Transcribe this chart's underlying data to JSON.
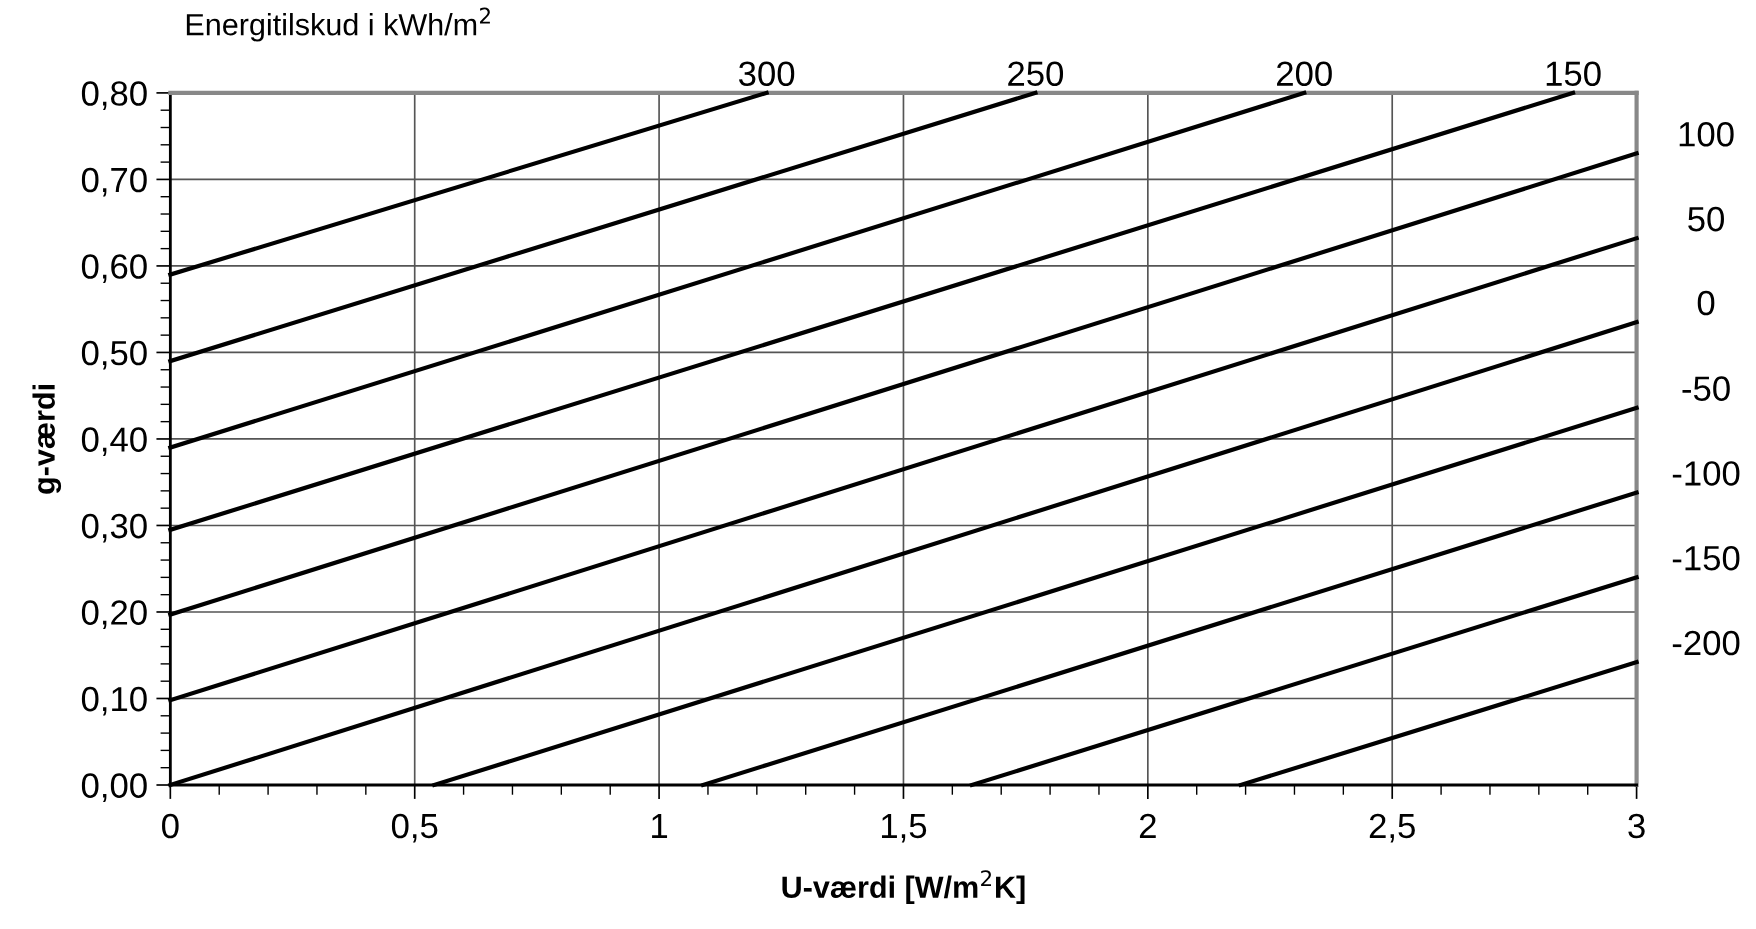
{
  "chart_data": {
    "type": "line",
    "title": "Energitilskud i kWh/m$^{2}$",
    "xlabel": "U-værdi [W/m$^{2}$K]",
    "ylabel": "g-værdi",
    "xlim": [
      0,
      3
    ],
    "ylim": [
      0,
      0.8
    ],
    "xticks": [
      {
        "value": 0,
        "label": "0"
      },
      {
        "value": 0.5,
        "label": "0,5"
      },
      {
        "value": 1,
        "label": "1"
      },
      {
        "value": 1.5,
        "label": "1,5"
      },
      {
        "value": 2,
        "label": "2"
      },
      {
        "value": 2.5,
        "label": "2,5"
      },
      {
        "value": 3,
        "label": "3"
      }
    ],
    "yticks": [
      {
        "value": 0,
        "label": "0,00"
      },
      {
        "value": 0.1,
        "label": "0,10"
      },
      {
        "value": 0.2,
        "label": "0,20"
      },
      {
        "value": 0.3,
        "label": "0,30"
      },
      {
        "value": 0.4,
        "label": "0,40"
      },
      {
        "value": 0.5,
        "label": "0,50"
      },
      {
        "value": 0.6,
        "label": "0,60"
      },
      {
        "value": 0.7,
        "label": "0,70"
      },
      {
        "value": 0.8,
        "label": "0,80"
      }
    ],
    "grid": true,
    "line_style": "solid",
    "series": [
      {
        "name": "300",
        "color": "#000000",
        "x": [
          0,
          1.22
        ],
        "values": [
          0.59,
          0.8
        ]
      },
      {
        "name": "250",
        "color": "#000000",
        "x": [
          0,
          1.77
        ],
        "values": [
          0.49,
          0.8
        ]
      },
      {
        "name": "200",
        "color": "#000000",
        "x": [
          0,
          2.32
        ],
        "values": [
          0.39,
          0.8
        ]
      },
      {
        "name": "150",
        "color": "#000000",
        "x": [
          0,
          2.87
        ],
        "values": [
          0.295,
          0.8
        ]
      },
      {
        "name": "100",
        "color": "#000000",
        "x": [
          0,
          3
        ],
        "values": [
          0.197,
          0.73
        ]
      },
      {
        "name": "50",
        "color": "#000000",
        "x": [
          0,
          3
        ],
        "values": [
          0.098,
          0.632
        ]
      },
      {
        "name": "0",
        "color": "#000000",
        "x": [
          0,
          3
        ],
        "values": [
          0,
          0.535
        ]
      },
      {
        "name": "-50",
        "color": "#000000",
        "x": [
          0.54,
          3
        ],
        "values": [
          0,
          0.436
        ]
      },
      {
        "name": "-100",
        "color": "#000000",
        "x": [
          1.09,
          3
        ],
        "values": [
          0,
          0.338
        ]
      },
      {
        "name": "-150",
        "color": "#000000",
        "x": [
          1.64,
          3
        ],
        "values": [
          0,
          0.24
        ]
      },
      {
        "name": "-200",
        "color": "#000000",
        "x": [
          2.19,
          3
        ],
        "values": [
          0,
          0.142
        ]
      }
    ]
  }
}
